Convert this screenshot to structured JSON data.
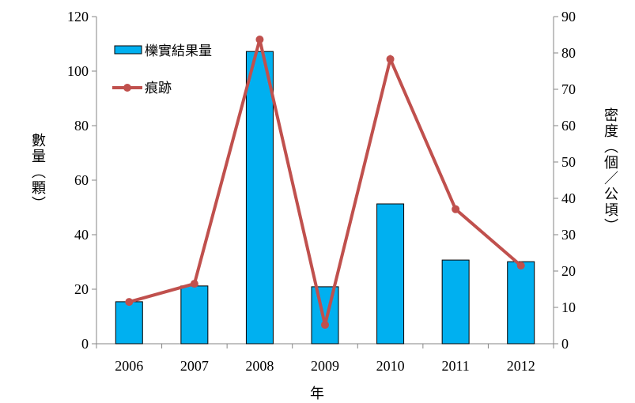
{
  "chart_data": {
    "type": "bar+line",
    "categories": [
      "2006",
      "2007",
      "2008",
      "2009",
      "2010",
      "2011",
      "2012"
    ],
    "xlabel": "年",
    "ylabel_left": "數量（顆）",
    "ylabel_right": "密度（個／公頃）",
    "ylim_left": [
      0,
      120
    ],
    "yticks_left": [
      "0",
      "20",
      "40",
      "60",
      "80",
      "100",
      "120"
    ],
    "ylim_right": [
      0,
      90
    ],
    "yticks_right": [
      "0",
      "10",
      "20",
      "30",
      "40",
      "50",
      "60",
      "70",
      "80",
      "90"
    ],
    "grid": false,
    "legend_position": "top-left",
    "series": [
      {
        "name": "櫟實結果量",
        "type": "bar",
        "axis": "left",
        "color": "#00B0F0",
        "values": [
          15.4,
          21.2,
          107.2,
          20.9,
          51.3,
          30.7,
          30.1
        ]
      },
      {
        "name": "痕跡",
        "type": "line",
        "axis": "right",
        "color": "#C0504D",
        "values": [
          11.5,
          16.5,
          83.7,
          5.2,
          78.3,
          37,
          21.5
        ]
      }
    ]
  }
}
